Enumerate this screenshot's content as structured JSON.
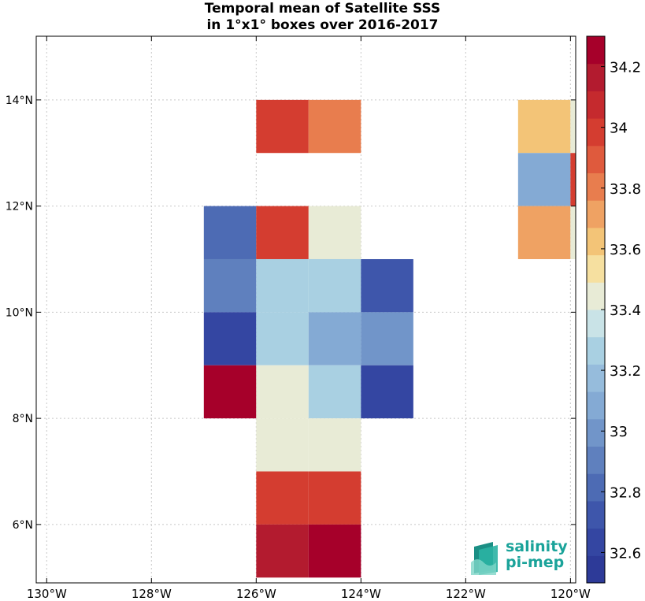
{
  "chart_data": {
    "type": "heatmap",
    "title_lines": [
      "Temporal mean of Satellite SSS",
      "in 1°x1° boxes over 2016-2017"
    ],
    "xlim": [
      -130.2,
      -119.9
    ],
    "ylim": [
      4.9,
      15.2
    ],
    "x_ticks": [
      {
        "value": -130,
        "label": "130°W"
      },
      {
        "value": -128,
        "label": "128°W"
      },
      {
        "value": -126,
        "label": "126°W"
      },
      {
        "value": -124,
        "label": "124°W"
      },
      {
        "value": -122,
        "label": "122°W"
      },
      {
        "value": -120,
        "label": "120°W"
      }
    ],
    "y_ticks": [
      {
        "value": 6,
        "label": "6°N"
      },
      {
        "value": 8,
        "label": "8°N"
      },
      {
        "value": 10,
        "label": "10°N"
      },
      {
        "value": 12,
        "label": "12°N"
      },
      {
        "value": 14,
        "label": "14°N"
      }
    ],
    "grid": true,
    "cell_size_deg": 1,
    "cells": [
      {
        "lon": -126,
        "lat": 13,
        "value": 34.0
      },
      {
        "lon": -125,
        "lat": 13,
        "value": 33.8
      },
      {
        "lon": -127,
        "lat": 11,
        "value": 32.8
      },
      {
        "lon": -126,
        "lat": 11,
        "value": 34.0
      },
      {
        "lon": -125,
        "lat": 11,
        "value": 33.45
      },
      {
        "lon": -127,
        "lat": 10,
        "value": 32.9
      },
      {
        "lon": -126,
        "lat": 10,
        "value": 33.3
      },
      {
        "lon": -125,
        "lat": 10,
        "value": 33.3
      },
      {
        "lon": -124,
        "lat": 10,
        "value": 32.75
      },
      {
        "lon": -127,
        "lat": 9,
        "value": 32.65
      },
      {
        "lon": -126,
        "lat": 9,
        "value": 33.3
      },
      {
        "lon": -125,
        "lat": 9,
        "value": 33.1
      },
      {
        "lon": -124,
        "lat": 9,
        "value": 33.0
      },
      {
        "lon": -127,
        "lat": 8,
        "value": 34.25
      },
      {
        "lon": -126,
        "lat": 8,
        "value": 33.4
      },
      {
        "lon": -125,
        "lat": 8,
        "value": 33.3
      },
      {
        "lon": -124,
        "lat": 8,
        "value": 32.65
      },
      {
        "lon": -126,
        "lat": 7,
        "value": 33.45
      },
      {
        "lon": -125,
        "lat": 7,
        "value": 33.45
      },
      {
        "lon": -126,
        "lat": 6,
        "value": 34.0
      },
      {
        "lon": -125,
        "lat": 6,
        "value": 34.0
      },
      {
        "lon": -126,
        "lat": 5,
        "value": 34.15
      },
      {
        "lon": -125,
        "lat": 5,
        "value": 34.25
      },
      {
        "lon": -121,
        "lat": 13,
        "value": 33.6
      },
      {
        "lon": -121,
        "lat": 12,
        "value": 33.1
      },
      {
        "lon": -121,
        "lat": 11,
        "value": 33.7
      },
      {
        "lon": -120,
        "lat": 13,
        "value": 33.45
      },
      {
        "lon": -120,
        "lat": 12,
        "value": 34.0
      },
      {
        "lon": -120,
        "lat": 11,
        "value": 33.45
      }
    ],
    "colorbar": {
      "min": 32.5,
      "max": 34.3,
      "ticks": [
        32.6,
        32.8,
        33,
        33.2,
        33.4,
        33.6,
        33.8,
        34,
        34.2
      ],
      "tick_labels": [
        "32.6",
        "32.8",
        "33",
        "33.2",
        "33.4",
        "33.6",
        "33.8",
        "34",
        "34.2"
      ],
      "colors": [
        "#2d3a98",
        "#3446a2",
        "#3e56ab",
        "#4d6bb4",
        "#5f80be",
        "#7195c9",
        "#84aad4",
        "#96bcdc",
        "#a9d0e2",
        "#c9e3e7",
        "#e8ebd6",
        "#f6e0a0",
        "#f3c477",
        "#efa263",
        "#e87d4e",
        "#df5a3d",
        "#d43d30",
        "#c52a2e",
        "#b31b2f",
        "#a6002a"
      ]
    },
    "logo": {
      "line1": "salinity",
      "line2": "pi-mep"
    }
  }
}
